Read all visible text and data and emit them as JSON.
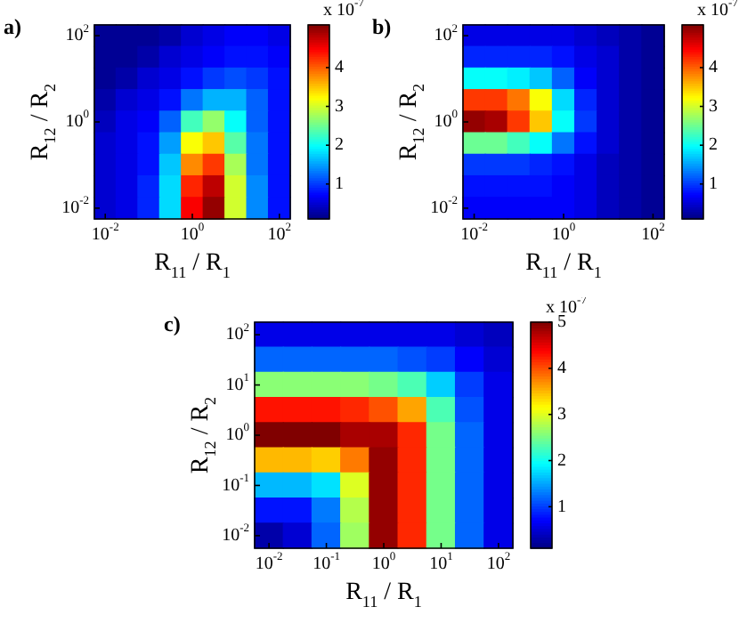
{
  "chart_data": [
    {
      "type": "heatmap",
      "title": "a)",
      "xlabel": "R$_{11}$ / R$_{1}$",
      "ylabel": "R$_{12}$ / R$_{2}$",
      "clabel": "x 10$^{-7}$",
      "categories": [
        "10$^{-2}$",
        null,
        null,
        null,
        "10$^{0}$",
        null,
        null,
        null,
        "10$^{2}$"
      ],
      "y_categories": [
        "10$^{2}$",
        null,
        null,
        null,
        "10$^{0}$",
        null,
        null,
        null,
        "10$^{-2}$"
      ],
      "clim": [
        0.1,
        5.1
      ],
      "cticks": [
        1,
        2,
        3,
        4
      ],
      "cells": [
        [
          0.2,
          0.2,
          0.2,
          0.3,
          0.5,
          0.6,
          0.7,
          0.7,
          0.6
        ],
        [
          0.2,
          0.2,
          0.3,
          0.5,
          0.6,
          0.7,
          0.8,
          0.8,
          0.7
        ],
        [
          0.2,
          0.3,
          0.5,
          0.6,
          0.8,
          1.0,
          1.1,
          1.0,
          0.8
        ],
        [
          0.3,
          0.5,
          0.6,
          0.8,
          1.3,
          1.6,
          1.6,
          1.2,
          0.8
        ],
        [
          0.4,
          0.6,
          0.7,
          1.2,
          2.3,
          2.7,
          2.0,
          1.2,
          0.8
        ],
        [
          0.5,
          0.6,
          0.8,
          1.5,
          3.2,
          3.5,
          2.4,
          1.3,
          0.8
        ],
        [
          0.5,
          0.6,
          0.8,
          1.7,
          3.8,
          4.2,
          2.8,
          1.3,
          0.8
        ],
        [
          0.5,
          0.6,
          0.9,
          1.8,
          4.3,
          4.8,
          3.0,
          1.4,
          0.8
        ],
        [
          0.5,
          0.6,
          0.9,
          1.8,
          4.5,
          5.0,
          3.0,
          1.4,
          0.8
        ]
      ]
    },
    {
      "type": "heatmap",
      "title": "b)",
      "xlabel": "R$_{11}$ / R$_{1}$",
      "ylabel": "R$_{12}$ / R$_{2}$",
      "clabel": "x 10$^{-7}$",
      "categories": [
        "10$^{-2}$",
        null,
        null,
        null,
        "10$^{0}$",
        null,
        null,
        null,
        "10$^{2}$"
      ],
      "y_categories": [
        "10$^{2}$",
        null,
        null,
        null,
        "10$^{0}$",
        null,
        null,
        null,
        "10$^{-2}$"
      ],
      "clim": [
        0.1,
        5.1
      ],
      "cticks": [
        1,
        2,
        3,
        4
      ],
      "cells": [
        [
          0.6,
          0.6,
          0.6,
          0.6,
          0.6,
          0.5,
          0.4,
          0.3,
          0.2
        ],
        [
          0.9,
          0.9,
          0.9,
          0.9,
          0.8,
          0.6,
          0.5,
          0.3,
          0.2
        ],
        [
          2.0,
          2.0,
          1.9,
          1.7,
          1.2,
          0.7,
          0.5,
          0.3,
          0.2
        ],
        [
          4.2,
          4.2,
          3.9,
          3.2,
          1.8,
          0.9,
          0.5,
          0.3,
          0.2
        ],
        [
          5.0,
          4.9,
          4.2,
          3.5,
          2.0,
          1.0,
          0.5,
          0.3,
          0.2
        ],
        [
          2.5,
          2.5,
          2.3,
          2.0,
          1.3,
          0.8,
          0.5,
          0.3,
          0.2
        ],
        [
          1.0,
          1.0,
          1.0,
          0.9,
          0.8,
          0.6,
          0.4,
          0.3,
          0.2
        ],
        [
          0.8,
          0.8,
          0.8,
          0.8,
          0.7,
          0.6,
          0.4,
          0.3,
          0.2
        ],
        [
          0.7,
          0.7,
          0.7,
          0.7,
          0.7,
          0.6,
          0.4,
          0.3,
          0.2
        ]
      ]
    },
    {
      "type": "heatmap",
      "title": "c)",
      "xlabel": "R$_{11}$ / R$_{1}$",
      "ylabel": "R$_{12}$ / R$_{2}$",
      "clabel": "x 10$^{-7}$",
      "categories": [
        "10$^{-2}$",
        null,
        "10$^{-1}$",
        null,
        "10$^{0}$",
        null,
        "10$^{1}$",
        null,
        "10$^{2}$"
      ],
      "y_categories": [
        "10$^{2}$",
        null,
        "10$^{1}$",
        null,
        "10$^{0}$",
        null,
        "10$^{-1}$",
        null,
        "10$^{-2}$"
      ],
      "clim": [
        0.1,
        5
      ],
      "cticks": [
        1,
        2,
        3,
        4,
        5
      ],
      "cells": [
        [
          0.6,
          0.6,
          0.6,
          0.6,
          0.6,
          0.6,
          0.6,
          0.5,
          0.4
        ],
        [
          1.2,
          1.2,
          1.2,
          1.2,
          1.2,
          1.1,
          1.0,
          0.7,
          0.5
        ],
        [
          2.6,
          2.6,
          2.6,
          2.6,
          2.5,
          2.3,
          1.7,
          1.0,
          0.6
        ],
        [
          4.3,
          4.3,
          4.3,
          4.2,
          4.0,
          3.6,
          2.3,
          1.1,
          0.6
        ],
        [
          5.0,
          5.0,
          5.0,
          4.8,
          4.8,
          4.2,
          2.5,
          1.2,
          0.6
        ],
        [
          3.5,
          3.5,
          3.4,
          3.8,
          4.9,
          4.2,
          2.5,
          1.2,
          0.6
        ],
        [
          1.6,
          1.6,
          1.8,
          3.0,
          4.9,
          4.2,
          2.5,
          1.2,
          0.6
        ],
        [
          0.8,
          0.8,
          1.3,
          2.8,
          4.9,
          4.2,
          2.5,
          1.2,
          0.6
        ],
        [
          0.3,
          0.5,
          1.2,
          2.7,
          4.9,
          4.2,
          2.5,
          1.2,
          0.6
        ]
      ]
    }
  ]
}
